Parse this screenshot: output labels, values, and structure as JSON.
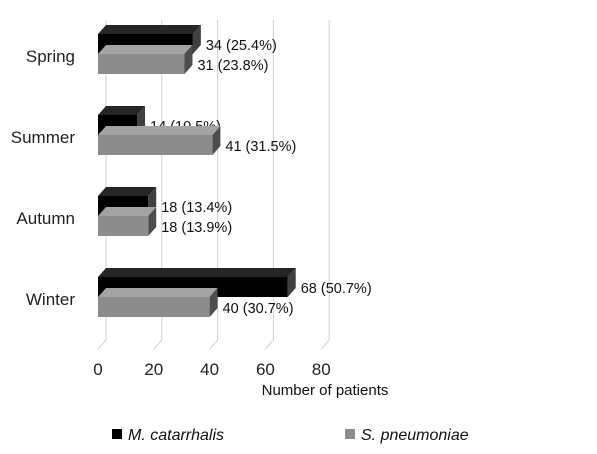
{
  "chart_data": {
    "type": "bar",
    "orientation": "horizontal",
    "style": "3d",
    "categories": [
      "Spring",
      "Summer",
      "Autumn",
      "Winter"
    ],
    "series": [
      {
        "name": "M. catarrhalis",
        "color": "#000000",
        "values": [
          34,
          14,
          18,
          68
        ],
        "labels": [
          "34 (25.4%)",
          "14 (10.5%)",
          "18 (13.4%)",
          "68 (50.7%)"
        ]
      },
      {
        "name": "S. pneumoniae",
        "color": "#8c8c8c",
        "values": [
          31,
          41,
          18,
          40
        ],
        "labels": [
          "31 (23.8%)",
          "41 (31.5%)",
          "18 (13.9%)",
          "40 (30.7%)"
        ]
      }
    ],
    "xlim": [
      0,
      80
    ],
    "xticks": [
      "0",
      "20",
      "40",
      "60",
      "80"
    ],
    "xlabel": "Number of patients",
    "ylabel": "",
    "grid": true,
    "legend_position": "bottom"
  }
}
